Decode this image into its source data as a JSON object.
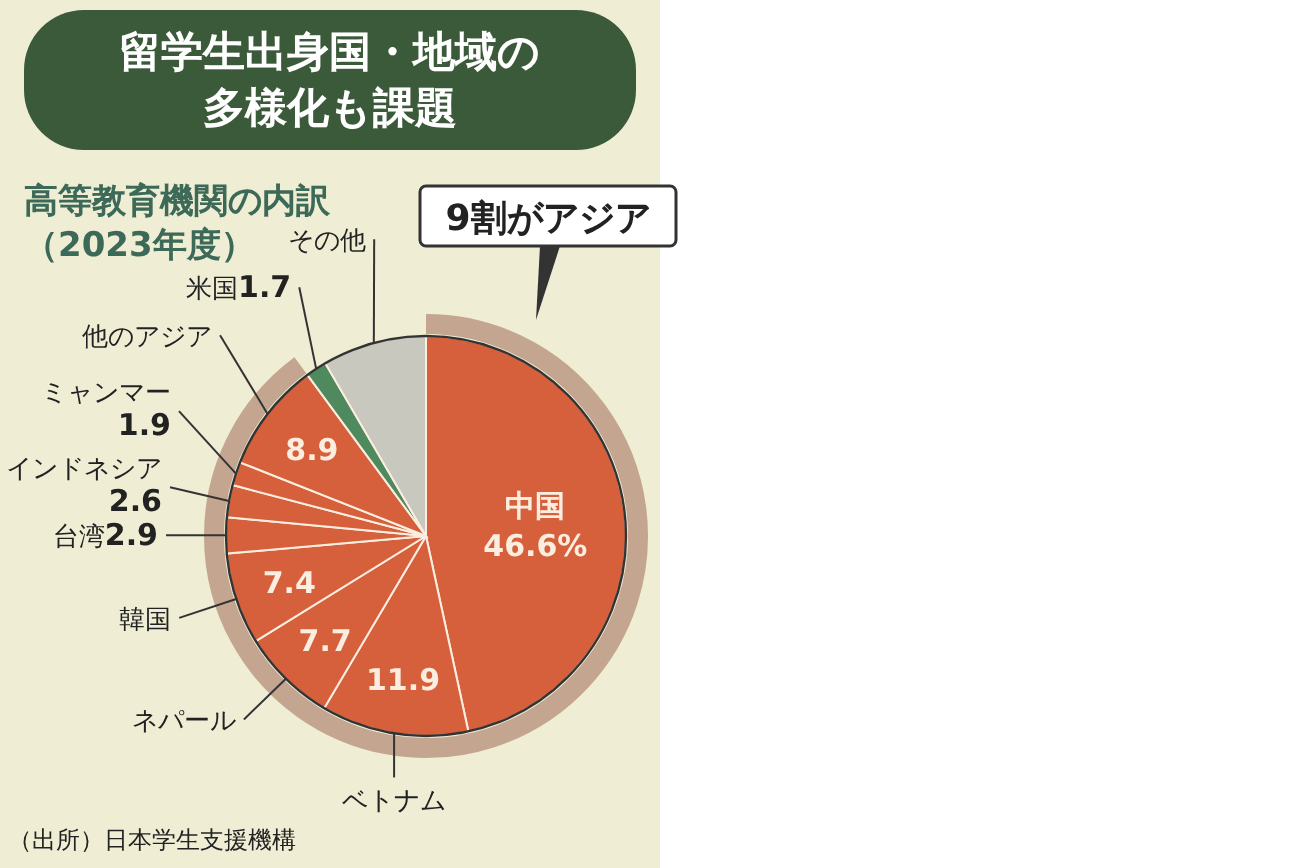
{
  "chart_data": {
    "type": "pie",
    "title": "留学生出身国・地域の多様化も課題",
    "subtitle": "高等教育機関の内訳（2023年度）",
    "categories": [
      "中国",
      "ベトナム",
      "ネパール",
      "韓国",
      "台湾",
      "インドネシア",
      "ミャンマー",
      "他のアジア",
      "米国",
      "その他"
    ],
    "values": [
      46.6,
      11.9,
      7.7,
      7.4,
      2.9,
      2.6,
      1.9,
      8.9,
      1.7,
      8.4
    ],
    "value_labels": [
      "46.6%",
      "11.9",
      "7.7",
      "7.4",
      "2.9",
      "2.6",
      "1.9",
      "8.9",
      "1.7",
      null
    ],
    "colors": [
      "#d6603c",
      "#d6603c",
      "#d6603c",
      "#d6603c",
      "#d6603c",
      "#d6603c",
      "#d6603c",
      "#d6603c",
      "#4f8a5e",
      "#c8c8be"
    ],
    "annotations": [
      "9割がアジア",
      "（出所）日本学生支援機構"
    ]
  }
}
